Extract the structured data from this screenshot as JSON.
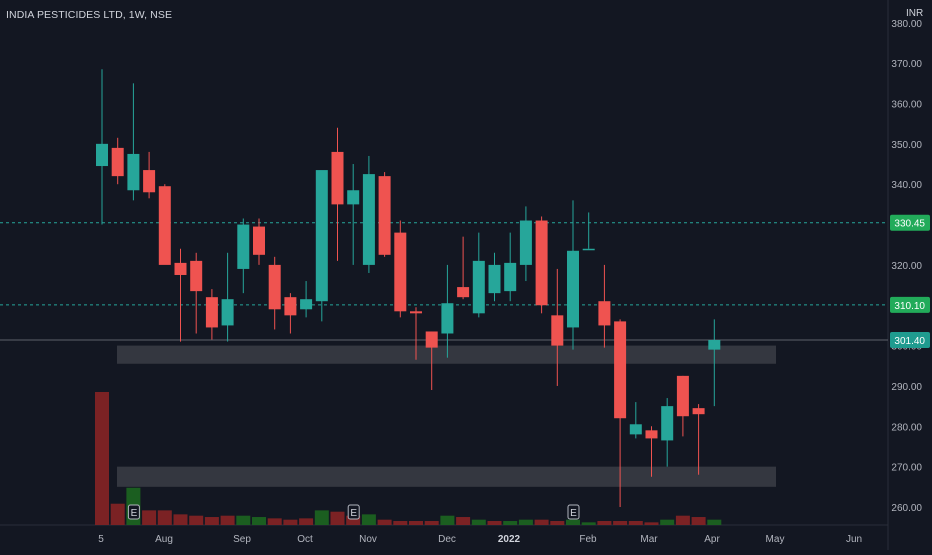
{
  "header": {
    "symbol_title": "INDIA PESTICIDES LTD, 1W, NSE",
    "currency": "INR"
  },
  "colors": {
    "background": "#131722",
    "up": "#26a69a",
    "down": "#ef5350",
    "volume_up": "#1b5e20",
    "volume_down": "#7b2224",
    "zone": "#3b3d45",
    "level_line": "#26a69a",
    "price_label": "#22ab5a",
    "axis_text": "#b2b5be"
  },
  "chart_data": {
    "type": "candlestick",
    "title": "INDIA PESTICIDES LTD, 1W, NSE",
    "ylim": [
      258,
      382
    ],
    "y_ticks": [
      260,
      270,
      280,
      290,
      300,
      310,
      320,
      330,
      340,
      350,
      360,
      370,
      380
    ],
    "y_tick_labels": [
      "260.00",
      "270.00",
      "280.00",
      "290.00",
      "300.00",
      "310.00",
      "320.00",
      "330.00",
      "340.00",
      "350.00",
      "360.00",
      "370.00",
      "380.00"
    ],
    "x_tick_labels": [
      "5",
      "Aug",
      "Sep",
      "Oct",
      "Nov",
      "Dec",
      "2022",
      "Feb",
      "Mar",
      "Apr",
      "May",
      "Jun"
    ],
    "candles": [
      {
        "o": 344.5,
        "h": 368.5,
        "l": 330.0,
        "c": 350.0
      },
      {
        "o": 349.0,
        "h": 351.5,
        "l": 340.0,
        "c": 342.0
      },
      {
        "o": 338.5,
        "h": 365.0,
        "l": 336.0,
        "c": 347.5
      },
      {
        "o": 343.5,
        "h": 348.0,
        "l": 336.5,
        "c": 338.0
      },
      {
        "o": 339.5,
        "h": 340.0,
        "l": 321.0,
        "c": 320.0
      },
      {
        "o": 320.5,
        "h": 324.0,
        "l": 301.0,
        "c": 317.5
      },
      {
        "o": 321.0,
        "h": 323.0,
        "l": 303.0,
        "c": 313.5
      },
      {
        "o": 312.0,
        "h": 314.0,
        "l": 301.5,
        "c": 304.5
      },
      {
        "o": 305.0,
        "h": 323.0,
        "l": 301.0,
        "c": 311.5
      },
      {
        "o": 319.0,
        "h": 331.5,
        "l": 313.0,
        "c": 330.0
      },
      {
        "o": 329.5,
        "h": 331.5,
        "l": 320.0,
        "c": 322.5
      },
      {
        "o": 320.0,
        "h": 322.0,
        "l": 304.0,
        "c": 309.0
      },
      {
        "o": 312.0,
        "h": 313.0,
        "l": 303.0,
        "c": 307.5
      },
      {
        "o": 309.0,
        "h": 316.0,
        "l": 307.0,
        "c": 311.5
      },
      {
        "o": 311.0,
        "h": 343.0,
        "l": 306.0,
        "c": 343.5
      },
      {
        "o": 348.0,
        "h": 354.0,
        "l": 321.0,
        "c": 335.0
      },
      {
        "o": 335.0,
        "h": 345.0,
        "l": 320.0,
        "c": 338.5
      },
      {
        "o": 320.0,
        "h": 347.0,
        "l": 318.0,
        "c": 342.5
      },
      {
        "o": 342.0,
        "h": 343.0,
        "l": 322.0,
        "c": 322.5
      },
      {
        "o": 328.0,
        "h": 331.0,
        "l": 307.0,
        "c": 308.5
      },
      {
        "o": 308.5,
        "h": 309.5,
        "l": 296.5,
        "c": 308.0
      },
      {
        "o": 303.5,
        "h": 303.5,
        "l": 289.0,
        "c": 299.5
      },
      {
        "o": 303.0,
        "h": 320.0,
        "l": 297.0,
        "c": 310.5
      },
      {
        "o": 314.5,
        "h": 327.0,
        "l": 311.5,
        "c": 312.0
      },
      {
        "o": 308.0,
        "h": 328.0,
        "l": 307.0,
        "c": 321.0
      },
      {
        "o": 313.0,
        "h": 323.0,
        "l": 311.0,
        "c": 320.0
      },
      {
        "o": 313.5,
        "h": 328.0,
        "l": 311.0,
        "c": 320.5
      },
      {
        "o": 320.0,
        "h": 334.5,
        "l": 316.0,
        "c": 331.0
      },
      {
        "o": 331.0,
        "h": 332.0,
        "l": 308.0,
        "c": 310.0
      },
      {
        "o": 307.5,
        "h": 319.0,
        "l": 290.0,
        "c": 300.0
      },
      {
        "o": 304.5,
        "h": 336.0,
        "l": 299.0,
        "c": 323.5
      },
      {
        "o": 324.0,
        "h": 333.0,
        "l": 324.0,
        "c": 324.0
      },
      {
        "o": 311.0,
        "h": 320.0,
        "l": 299.5,
        "c": 305.0
      },
      {
        "o": 306.0,
        "h": 306.5,
        "l": 260.0,
        "c": 282.0
      },
      {
        "o": 278.0,
        "h": 286.0,
        "l": 277.0,
        "c": 280.5
      },
      {
        "o": 279.0,
        "h": 280.0,
        "l": 267.5,
        "c": 277.0
      },
      {
        "o": 276.5,
        "h": 287.0,
        "l": 270.0,
        "c": 285.0
      },
      {
        "o": 292.5,
        "h": 292.5,
        "l": 277.5,
        "c": 282.5
      },
      {
        "o": 284.5,
        "h": 285.5,
        "l": 268.0,
        "c": 283.0
      },
      {
        "o": 299.0,
        "h": 306.5,
        "l": 285.0,
        "c": 301.4
      }
    ],
    "volumes": [
      {
        "v": 100,
        "dir": "down"
      },
      {
        "v": 16,
        "dir": "down"
      },
      {
        "v": 28,
        "dir": "up"
      },
      {
        "v": 11,
        "dir": "down"
      },
      {
        "v": 11,
        "dir": "down"
      },
      {
        "v": 8,
        "dir": "down"
      },
      {
        "v": 7,
        "dir": "down"
      },
      {
        "v": 6,
        "dir": "down"
      },
      {
        "v": 7,
        "dir": "down"
      },
      {
        "v": 7,
        "dir": "up"
      },
      {
        "v": 6,
        "dir": "up"
      },
      {
        "v": 5,
        "dir": "down"
      },
      {
        "v": 4,
        "dir": "down"
      },
      {
        "v": 5,
        "dir": "down"
      },
      {
        "v": 11,
        "dir": "up"
      },
      {
        "v": 10,
        "dir": "down"
      },
      {
        "v": 7,
        "dir": "down"
      },
      {
        "v": 8,
        "dir": "up"
      },
      {
        "v": 4,
        "dir": "down"
      },
      {
        "v": 3,
        "dir": "down"
      },
      {
        "v": 3,
        "dir": "down"
      },
      {
        "v": 3,
        "dir": "down"
      },
      {
        "v": 7,
        "dir": "up"
      },
      {
        "v": 6,
        "dir": "down"
      },
      {
        "v": 4,
        "dir": "up"
      },
      {
        "v": 3,
        "dir": "down"
      },
      {
        "v": 3,
        "dir": "up"
      },
      {
        "v": 4,
        "dir": "up"
      },
      {
        "v": 4,
        "dir": "down"
      },
      {
        "v": 3,
        "dir": "down"
      },
      {
        "v": 4,
        "dir": "up"
      },
      {
        "v": 2,
        "dir": "up"
      },
      {
        "v": 3,
        "dir": "down"
      },
      {
        "v": 3,
        "dir": "down"
      },
      {
        "v": 3,
        "dir": "down"
      },
      {
        "v": 2,
        "dir": "down"
      },
      {
        "v": 4,
        "dir": "up"
      },
      {
        "v": 7,
        "dir": "down"
      },
      {
        "v": 6,
        "dir": "down"
      },
      {
        "v": 4,
        "dir": "up"
      }
    ],
    "earnings_markers": [
      {
        "index": 2,
        "label": "E"
      },
      {
        "index": 16,
        "label": "E"
      },
      {
        "index": 30,
        "label": "E"
      }
    ],
    "zones": [
      {
        "from": 295.5,
        "to": 300.0
      },
      {
        "from": 265.0,
        "to": 270.0
      }
    ],
    "levels": [
      {
        "value": 330.45,
        "label": "330.45",
        "style": "dashed"
      },
      {
        "value": 310.1,
        "label": "310.10",
        "style": "dashed"
      },
      {
        "value": 301.4,
        "label": "301.40",
        "style": "solid"
      }
    ],
    "grid": false,
    "legend": "none"
  }
}
